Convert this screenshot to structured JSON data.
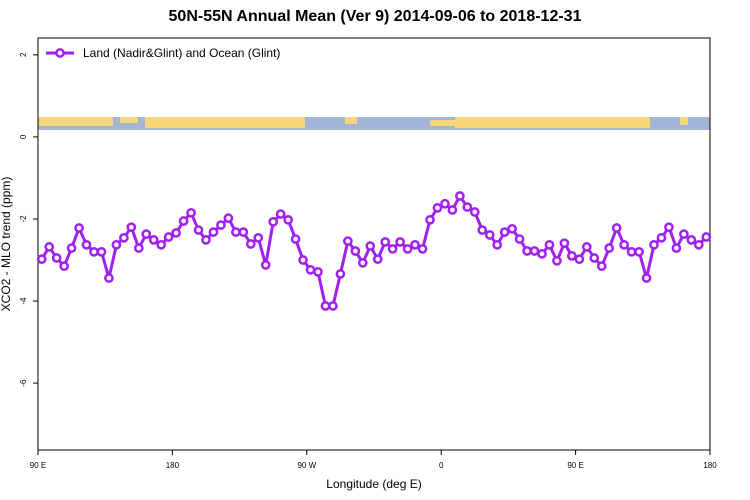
{
  "chart_data": {
    "type": "line",
    "title": "50N-55N Annual Mean (Ver 9)   2014-09-06 to 2018-12-31",
    "x_label": "Longitude (deg E)",
    "y_label": "XCO2 - MLO trend (ppm)",
    "x": [
      92.5,
      97.5,
      102.5,
      107.5,
      112.5,
      117.5,
      122.5,
      127.5,
      132.5,
      137.5,
      142.5,
      147.5,
      152.5,
      157.5,
      162.5,
      167.5,
      172.5,
      177.5,
      182.5,
      187.5,
      192.5,
      197.5,
      202.5,
      207.5,
      212.5,
      217.5,
      222.5,
      227.5,
      232.5,
      237.5,
      242.5,
      247.5,
      252.5,
      257.5,
      262.5,
      267.5,
      272.5,
      277.5,
      282.5,
      287.5,
      292.5,
      297.5,
      302.5,
      307.5,
      312.5,
      317.5,
      322.5,
      327.5,
      332.5,
      337.5,
      342.5,
      347.5,
      352.5,
      357.5,
      362.5,
      367.5,
      372.5,
      377.5,
      382.5,
      387.5,
      392.5,
      397.5,
      402.5,
      407.5,
      412.5,
      417.5,
      422.5,
      427.5,
      432.5,
      437.5,
      442.5,
      447.5,
      452.5,
      457.5,
      462.5,
      467.5,
      472.5,
      477.5,
      482.5,
      487.5,
      492.5,
      497.5,
      502.5,
      507.5,
      512.5,
      517.5,
      522.5,
      527.5,
      532.5,
      537.5
    ],
    "series": [
      {
        "name": "Land (Nadir&Glint) and Ocean (Glint)",
        "color": "#a020f0",
        "values": [
          -2.98,
          -2.68,
          -2.95,
          -3.15,
          -2.71,
          -2.22,
          -2.63,
          -2.8,
          -2.8,
          -3.44,
          -2.63,
          -2.46,
          -2.2,
          -2.71,
          -2.37,
          -2.51,
          -2.63,
          -2.44,
          -2.34,
          -2.05,
          -1.85,
          -2.27,
          -2.51,
          -2.32,
          -2.15,
          -1.98,
          -2.32,
          -2.32,
          -2.61,
          -2.46,
          -3.12,
          -2.07,
          -1.88,
          -2.02,
          -2.49,
          -3.0,
          -3.24,
          -3.29,
          -4.12,
          -4.12,
          -3.34,
          -2.54,
          -2.78,
          -3.07,
          -2.66,
          -2.98,
          -2.56,
          -2.73,
          -2.56,
          -2.73,
          -2.63,
          -2.73,
          -2.02,
          -1.73,
          -1.63,
          -1.78,
          -1.44,
          -1.71,
          -1.83,
          -2.27,
          -2.39,
          -2.63,
          -2.32,
          -2.24,
          -2.49,
          -2.78,
          -2.78,
          -2.85,
          -2.63,
          -3.02,
          -2.59,
          -2.9,
          -2.98,
          -2.68,
          -2.95,
          -3.15,
          -2.71,
          -2.22,
          -2.63,
          -2.8,
          -2.8,
          -3.44,
          -2.63,
          -2.46,
          -2.2,
          -2.71,
          -2.37,
          -2.51,
          -2.63,
          -2.44
        ]
      }
    ],
    "xlim": [
      90,
      540
    ],
    "xticks": [
      {
        "value": 90,
        "label": "90 E"
      },
      180,
      {
        "value": 270,
        "label": "90 W"
      },
      {
        "value": 360,
        "label": "0"
      },
      {
        "value": 450,
        "label": "90 E"
      },
      {
        "value": 540,
        "label": "180"
      }
    ],
    "ylim": [
      -7.63,
      2.41
    ],
    "yticks": [
      2,
      0,
      -2,
      -4,
      -6
    ],
    "legend": "top-left"
  }
}
